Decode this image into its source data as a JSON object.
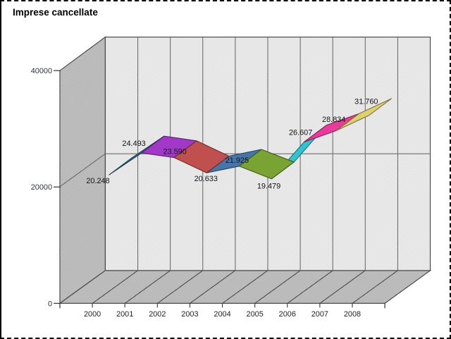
{
  "title": "Imprese cancellate",
  "frame": {
    "border_color": "#000000",
    "background": "#ffffff"
  },
  "chart_data": {
    "type": "line",
    "style": "3d-ribbon",
    "title": "Imprese cancellate",
    "xlabel": "",
    "ylabel": "",
    "categories": [
      "2000",
      "2001",
      "2002",
      "2003",
      "2004",
      "2005",
      "2006",
      "2007",
      "2008"
    ],
    "series": [
      {
        "name": "Imprese cancellate",
        "values": [
          20248,
          24493,
          23590,
          20633,
          21925,
          19479,
          26607,
          28834,
          31760
        ]
      }
    ],
    "data_labels": [
      "20.248",
      "24.493",
      "23.590",
      "20.633",
      "21.925",
      "19.479",
      "26.607",
      "28.834",
      "31.760"
    ],
    "ylim": [
      0,
      40000
    ],
    "yticks": [
      0,
      20000,
      40000
    ],
    "ytick_labels": [
      "0",
      "20000",
      "40000"
    ],
    "grid": true,
    "legend": "none",
    "segment_colors": [
      "#31708f",
      "#a238c8",
      "#c0504d",
      "#4576ab",
      "#79a332",
      "#2fc4cf",
      "#ea3a9c",
      "#ddd06e"
    ],
    "colors": {
      "back_wall_checker": [
        "#d2d2d2",
        "#fcfcfc"
      ],
      "floor_checker": [
        "#969696",
        "#e0e0e0"
      ],
      "gridline": "#6e6e6e",
      "wall_edge": "#4a4a4a",
      "axis_text": "#2e3344",
      "data_label_text": "#141414",
      "title_text": "#000000"
    }
  }
}
